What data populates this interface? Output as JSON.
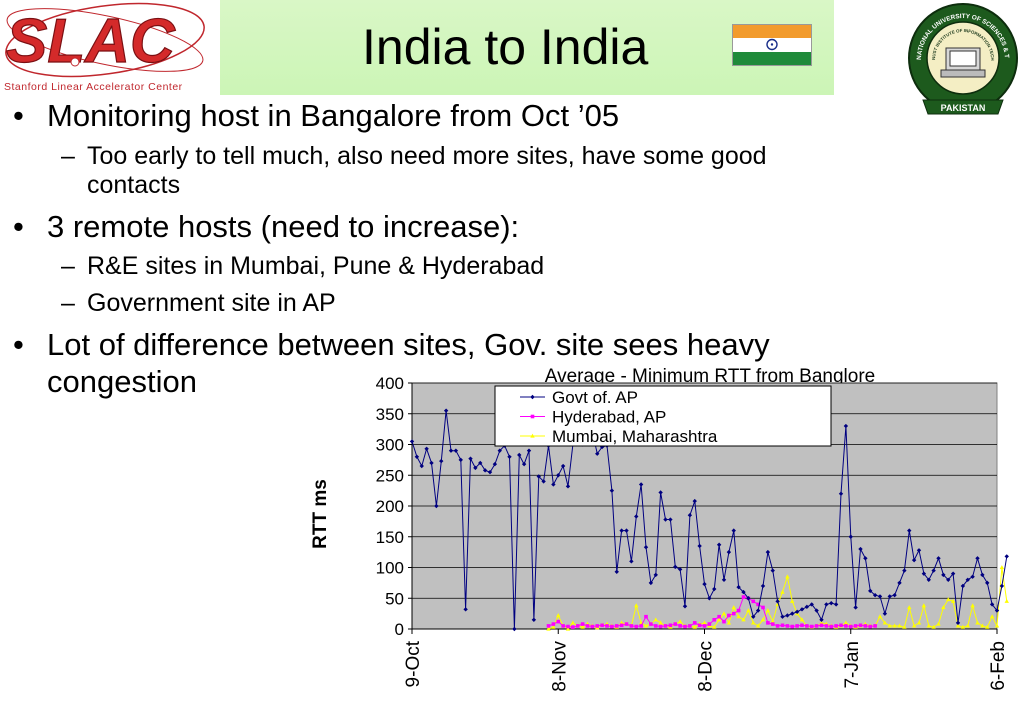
{
  "slide": {
    "title": "India to India",
    "logo_left": {
      "text": "SLAC",
      "subtitle": "Stanford Linear Accelerator Center"
    },
    "logo_right": {
      "name": "national-university-seal",
      "ring_text": "NATIONAL UNIVERSITY OF SCIENCES & TECHNOLOGY",
      "inner_text": "NUST INSTITUTE OF INFORMATION TECHNOLOGY",
      "bottom_text": "PAKISTAN"
    },
    "flag": {
      "colors": [
        "#f29b2d",
        "#ffffff",
        "#1f8a3a"
      ],
      "chakra_color": "#1a2f8a"
    }
  },
  "bullets": [
    {
      "text": "Monitoring host in Bangalore from Oct ’05",
      "subs": [
        {
          "text": "Too early to tell much, also need more sites, have some good",
          "cont": "contacts"
        }
      ]
    },
    {
      "text": "3 remote hosts (need to increase):",
      "subs": [
        {
          "text": "R&E sites in Mumbai, Pune & Hyderabad"
        },
        {
          "text": "Government site in AP"
        }
      ]
    },
    {
      "text": "Lot of difference between sites, Gov. site sees heavy",
      "cont": "congestion",
      "subs": []
    }
  ],
  "chart_data": {
    "type": "line",
    "title": "Average - Minimum RTT from Banglore",
    "ylabel": "RTT ms",
    "xlabel": "",
    "ylim": [
      0,
      400
    ],
    "yticks": [
      0,
      50,
      100,
      150,
      200,
      250,
      300,
      350,
      400
    ],
    "xticks": [
      "9-Oct",
      "8-Nov",
      "8-Dec",
      "7-Jan",
      "6-Feb"
    ],
    "xlim": [
      0,
      120
    ],
    "xtick_positions": [
      0,
      30,
      60,
      90,
      120
    ],
    "grid": true,
    "legend_position": "top-center",
    "plot_background": "#c0c0c0",
    "series": [
      {
        "name": "Govt of. AP",
        "color": "#000080",
        "marker": "diamond",
        "values": [
          305,
          280,
          265,
          293,
          270,
          200,
          273,
          355,
          290,
          290,
          275,
          32,
          277,
          262,
          270,
          258,
          255,
          268,
          290,
          298,
          280,
          0,
          283,
          268,
          290,
          15,
          248,
          240,
          298,
          235,
          250,
          265,
          232,
          300,
          330,
          300,
          310,
          320,
          285,
          296,
          298,
          225,
          93,
          160,
          160,
          110,
          183,
          235,
          133,
          75,
          88,
          222,
          178,
          178,
          101,
          97,
          37,
          185,
          208,
          135,
          73,
          50,
          65,
          137,
          80,
          125,
          160,
          68,
          60,
          50,
          20,
          30,
          70,
          125,
          95,
          45,
          20,
          22,
          25,
          28,
          32,
          36,
          40,
          30,
          15,
          40,
          42,
          40,
          220,
          330,
          150,
          35,
          130,
          115,
          62,
          55,
          53,
          25,
          53,
          55,
          75,
          95,
          160,
          112,
          128,
          90,
          80,
          95,
          115,
          88,
          80,
          90,
          10,
          70,
          80,
          85,
          115,
          88,
          75,
          40,
          30,
          70,
          118
        ]
      },
      {
        "name": "Hyderabad, AP",
        "color": "#ff00ff",
        "marker": "square",
        "values": [
          null,
          null,
          null,
          null,
          null,
          null,
          null,
          null,
          null,
          null,
          null,
          null,
          null,
          null,
          null,
          null,
          null,
          null,
          null,
          null,
          null,
          null,
          null,
          null,
          null,
          null,
          null,
          null,
          5,
          8,
          12,
          5,
          4,
          3,
          5,
          8,
          5,
          4,
          5,
          6,
          5,
          4,
          5,
          6,
          8,
          5,
          4,
          5,
          20,
          8,
          5,
          4,
          5,
          6,
          8,
          5,
          4,
          5,
          10,
          6,
          5,
          8,
          15,
          20,
          12,
          22,
          25,
          30,
          52,
          50,
          45,
          40,
          35,
          10,
          8,
          5,
          6,
          5,
          4,
          5,
          6,
          5,
          4,
          5,
          6,
          5,
          4,
          5,
          6,
          5,
          4,
          5,
          6,
          5,
          4,
          5
        ]
      },
      {
        "name": "Mumbai, Maharashtra",
        "color": "#ffff00",
        "marker": "triangle",
        "values": [
          null,
          null,
          null,
          null,
          null,
          null,
          null,
          null,
          null,
          null,
          null,
          null,
          null,
          null,
          null,
          null,
          null,
          null,
          null,
          null,
          null,
          null,
          null,
          null,
          null,
          null,
          null,
          null,
          0,
          3,
          22,
          5,
          0,
          10,
          5,
          3,
          8,
          5,
          2,
          6,
          8,
          5,
          3,
          10,
          8,
          5,
          38,
          10,
          5,
          8,
          15,
          10,
          5,
          3,
          8,
          12,
          5,
          5,
          3,
          8,
          10,
          5,
          3,
          15,
          25,
          10,
          35,
          20,
          15,
          30,
          10,
          5,
          15,
          30,
          12,
          40,
          60,
          85,
          45,
          25,
          15,
          5,
          3,
          5,
          10,
          8,
          5,
          3,
          5,
          10,
          5,
          3,
          5,
          8,
          5,
          5,
          20,
          10,
          5,
          5,
          5,
          3,
          35,
          5,
          10,
          38,
          5,
          3,
          8,
          35,
          48,
          45,
          5,
          3,
          5,
          38,
          10,
          5,
          3,
          20,
          5,
          100,
          45
        ]
      }
    ]
  }
}
